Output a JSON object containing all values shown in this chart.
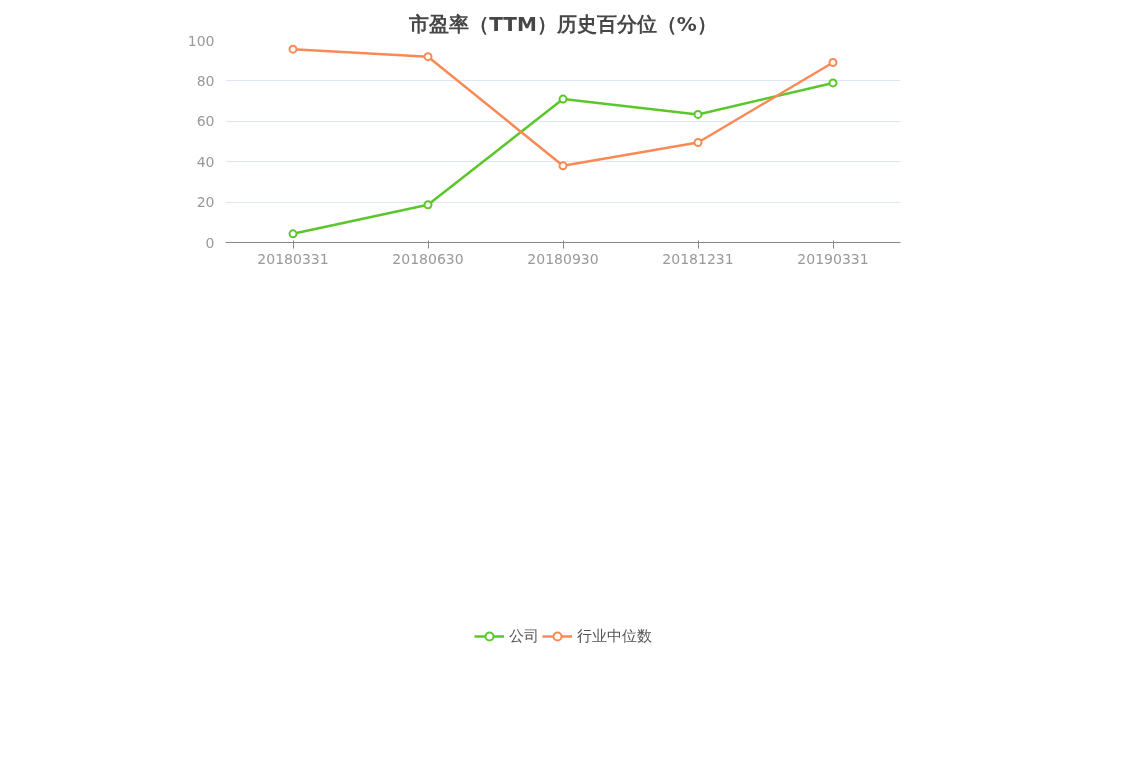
{
  "chart_data": {
    "type": "line",
    "title": "市盈率（TTM）历史百分位（%）",
    "categories": [
      "20180331",
      "20180630",
      "20180930",
      "20181231",
      "20190331"
    ],
    "series": [
      {
        "name": "公司",
        "color": "#5cc72d",
        "values": [
          4.3,
          18.7,
          71.0,
          63.4,
          79.0
        ]
      },
      {
        "name": "行业中位数",
        "color": "#f98a56",
        "values": [
          95.7,
          92.0,
          38.0,
          49.5,
          89.1
        ]
      }
    ],
    "ylim": [
      0,
      100
    ],
    "yticks": [
      0,
      20,
      40,
      60,
      80,
      100
    ],
    "grid": "y",
    "legend": "bottom",
    "marker": "circle",
    "line_style": "solid"
  }
}
